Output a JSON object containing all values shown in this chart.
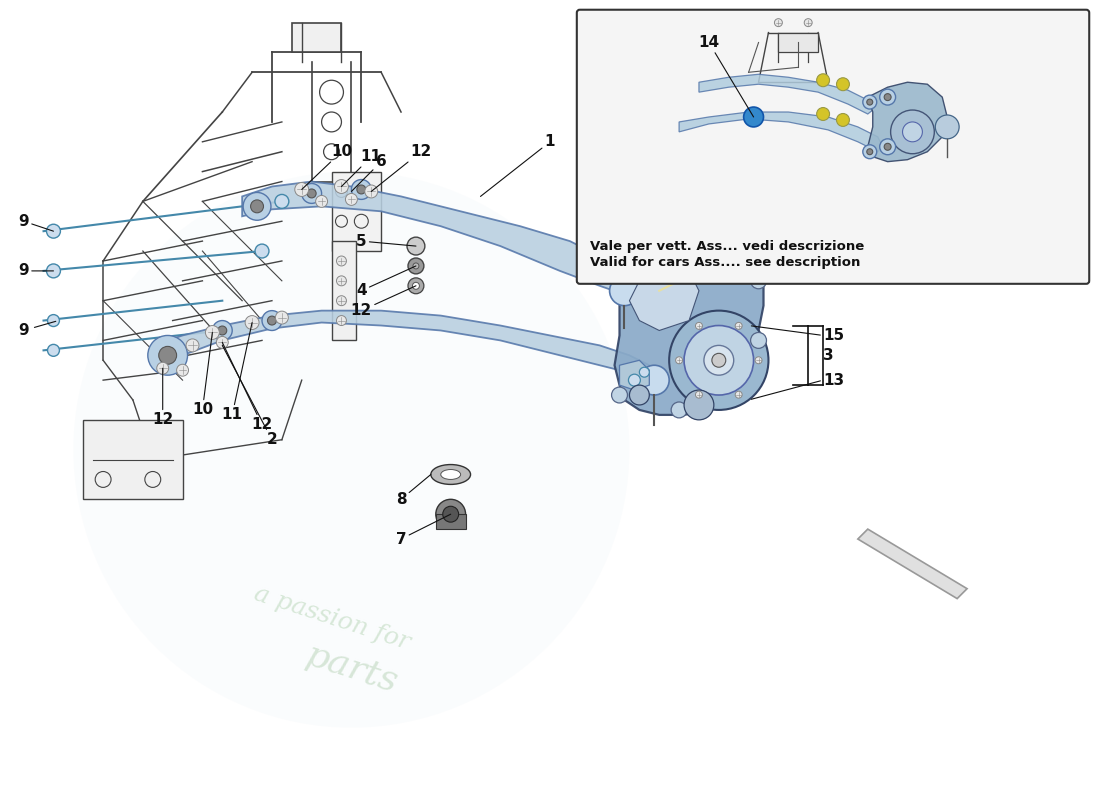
{
  "bg_color": "#ffffff",
  "watermark_text1": "a passion for",
  "watermark_text2": "parts",
  "inset_text_line1": "Vale per vett. Ass... vedi descrizione",
  "inset_text_line2": "Valid for cars Ass.... see description",
  "arrow_color": "#111111",
  "arm_fill": "#b8cfe0",
  "arm_stroke": "#5577aa",
  "knuckle_fill": "#8aaac8",
  "knuckle_stroke": "#334466",
  "frame_color": "#444444",
  "inset_bg": "#f5f5f5",
  "inset_border": "#333333",
  "lfs": 11,
  "wm_color1": "#c8dfc8",
  "wm_color2": "#c0d8c0",
  "compass_color": "#999999",
  "label_color": "#111111"
}
